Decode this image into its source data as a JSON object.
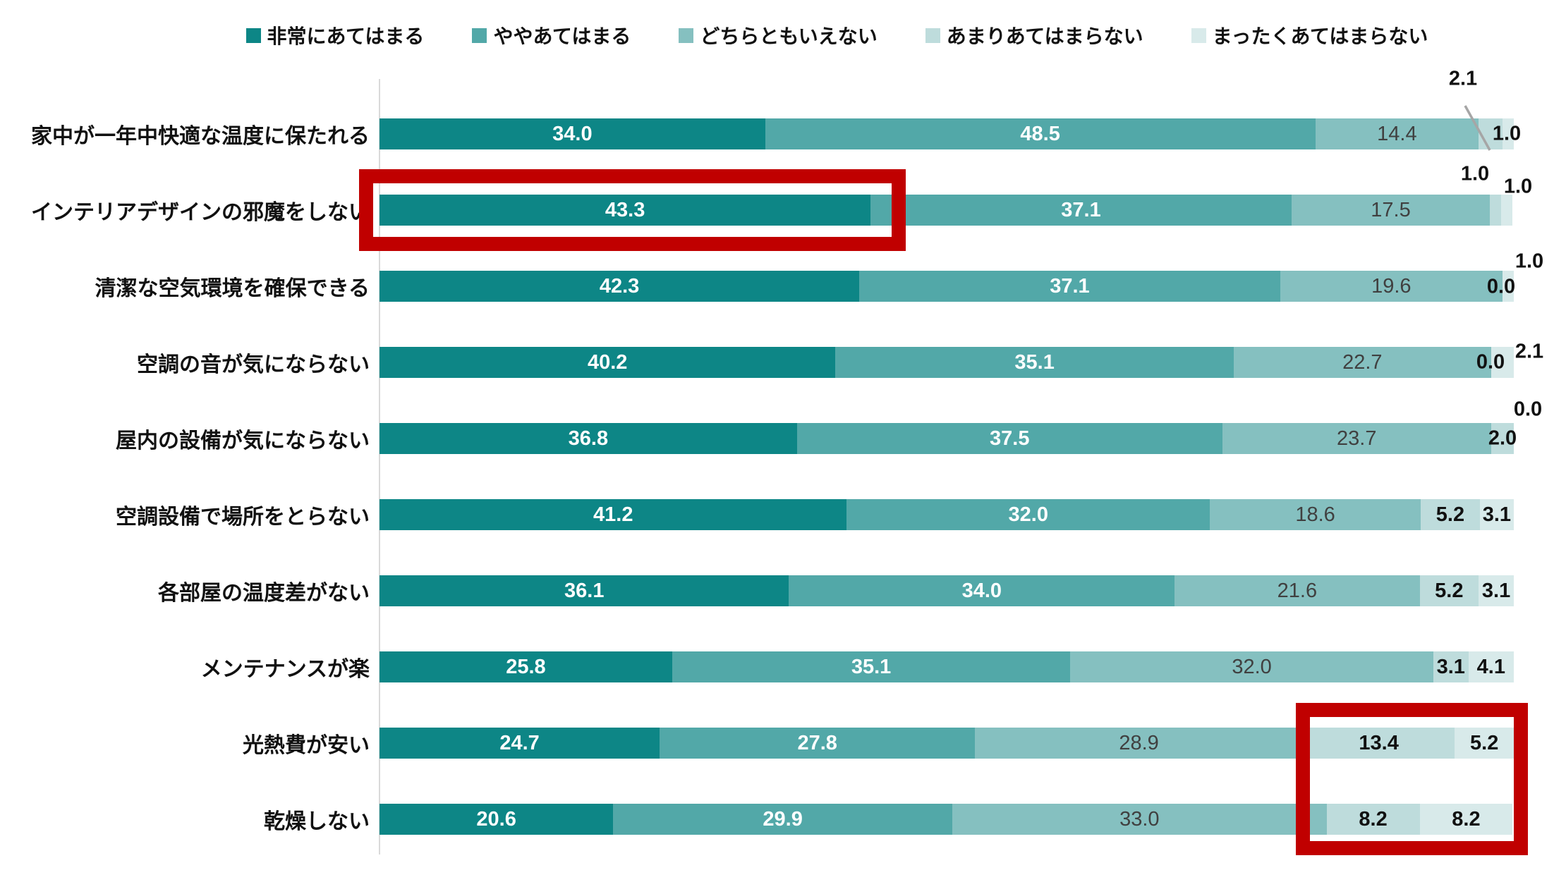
{
  "page": {
    "background": "#FFFFFF"
  },
  "chart_data": {
    "type": "bar",
    "subtype": "horizontal-stacked-100pct",
    "value_unit": "percent",
    "xlim": [
      0,
      100
    ],
    "grid": false,
    "legend_position": "top",
    "axis_line_color": "#D9D9D9",
    "value_label_format": "one-decimal",
    "categories": [
      "家中が一年中快適な温度に保たれる",
      "インテリアデザインの邪魔をしない",
      "清潔な空気環境を確保できる",
      "空調の音が気にならない",
      "屋内の設備が気にならない",
      "空調設備で場所をとらない",
      "各部屋の温度差がない",
      "メンテナンスが楽",
      "光熱費が安い",
      "乾燥しない"
    ],
    "series": [
      {
        "name": "非常にあてはまる",
        "color": "#0D8686",
        "label_color": "#FFFFFF",
        "label_weight": "bold",
        "values": [
          34.0,
          43.3,
          42.3,
          40.2,
          36.8,
          41.2,
          36.1,
          25.8,
          24.7,
          20.6
        ]
      },
      {
        "name": "ややあてはまる",
        "color": "#52A8A8",
        "label_color": "#FFFFFF",
        "label_weight": "bold",
        "values": [
          48.5,
          37.1,
          37.1,
          35.1,
          37.5,
          32.0,
          34.0,
          35.1,
          27.8,
          29.9
        ]
      },
      {
        "name": "どちらともいえない",
        "color": "#85C0C0",
        "label_color": "#404040",
        "label_weight": "normal",
        "values": [
          14.4,
          17.5,
          19.6,
          22.7,
          23.7,
          18.6,
          21.6,
          32.0,
          28.9,
          33.0
        ]
      },
      {
        "name": "あまりあてはまらない",
        "color": "#BEDCDC",
        "label_color": "#111111",
        "label_weight": "bold",
        "values": [
          2.1,
          1.0,
          0.0,
          0.0,
          2.0,
          5.2,
          5.2,
          3.1,
          13.4,
          8.2
        ]
      },
      {
        "name": "まったくあてはまらない",
        "color": "#D8EAEA",
        "label_color": "#111111",
        "label_weight": "bold",
        "values": [
          1.0,
          1.0,
          1.0,
          2.1,
          0.0,
          3.1,
          3.1,
          4.1,
          5.2,
          8.2
        ]
      }
    ],
    "annotations": {
      "callout": {
        "row": 0,
        "series": 3,
        "value": 2.1,
        "leader_line_color": "#A6A6A6"
      },
      "highlight_boxes": [
        {
          "color": "#C00000",
          "target": "row インテリアデザインの邪魔をしない, segment 非常にあてはまる (43.3)"
        },
        {
          "color": "#C00000",
          "target": "rows 光熱費が安い + 乾燥しない, segments あまりあてはまらない + まったくあてはまらない"
        }
      ]
    }
  }
}
